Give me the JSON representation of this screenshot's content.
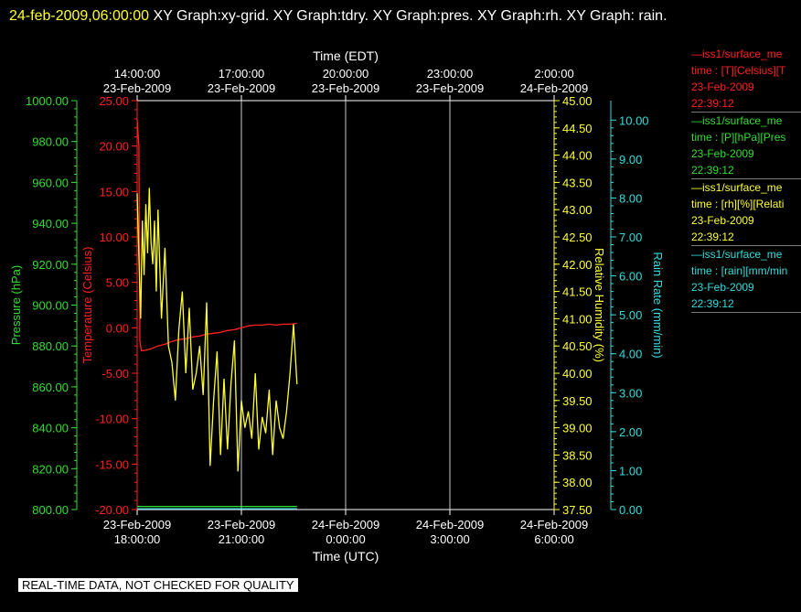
{
  "title": {
    "timestamp": "24-feb-2009,06:00:00",
    "text": "XY Graph:xy-grid.  XY Graph:tdry.  XY Graph:pres.  XY Graph:rh.  XY Graph: rain."
  },
  "quality_note": "REAL-TIME DATA, NOT CHECKED FOR QUALITY",
  "legend": [
    {
      "color": "#ff2020",
      "lines": [
        "—iss1/surface_me",
        "time : [T][Celsius][T",
        "23-Feb-2009",
        "22:39:12"
      ]
    },
    {
      "color": "#33dd33",
      "lines": [
        "—iss1/surface_me",
        "time : [P][hPa][Pres",
        "23-Feb-2009",
        "22:39:12"
      ]
    },
    {
      "color": "#ffff33",
      "lines": [
        "—iss1/surface_me",
        "time : [rh][%][Relati",
        "23-Feb-2009",
        "22:39:12"
      ]
    },
    {
      "color": "#33dddd",
      "lines": [
        "—iss1/surface_me",
        "time : [rain][mm/min",
        "23-Feb-2009",
        "22:39:12"
      ]
    }
  ],
  "chart_data": {
    "type": "line",
    "top_axis": {
      "label": "Time (EDT)",
      "ticks": [
        {
          "hour": 0,
          "line1": "14:00:00",
          "line2": "23-Feb-2009"
        },
        {
          "hour": 3,
          "line1": "17:00:00",
          "line2": "23-Feb-2009"
        },
        {
          "hour": 6,
          "line1": "20:00:00",
          "line2": "23-Feb-2009"
        },
        {
          "hour": 9,
          "line1": "23:00:00",
          "line2": "23-Feb-2009"
        },
        {
          "hour": 12,
          "line1": "2:00:00",
          "line2": "24-Feb-2009"
        }
      ]
    },
    "bottom_axis": {
      "label": "Time (UTC)",
      "ticks": [
        {
          "hour": 0,
          "line1": "23-Feb-2009",
          "line2": "18:00:00"
        },
        {
          "hour": 3,
          "line1": "23-Feb-2009",
          "line2": "21:00:00"
        },
        {
          "hour": 6,
          "line1": "24-Feb-2009",
          "line2": "0:00:00"
        },
        {
          "hour": 9,
          "line1": "24-Feb-2009",
          "line2": "3:00:00"
        },
        {
          "hour": 12,
          "line1": "24-Feb-2009",
          "line2": "6:00:00"
        }
      ]
    },
    "xlim": [
      0,
      12
    ],
    "y_axes": [
      {
        "id": "pres",
        "label": "Pressure (hPa)",
        "color": "#33dd33",
        "ylim": [
          800,
          1000
        ],
        "ticks": [
          "800.00",
          "820.00",
          "840.00",
          "860.00",
          "880.00",
          "900.00",
          "920.00",
          "940.00",
          "960.00",
          "980.00",
          "1000.00"
        ]
      },
      {
        "id": "tdry",
        "label": "Temperature (Celsius)",
        "color": "#ff2020",
        "ylim": [
          -20,
          25
        ],
        "ticks": [
          "-20.00",
          "-15.00",
          "-10.00",
          "-5.00",
          "0.00",
          "5.00",
          "10.00",
          "15.00",
          "20.00",
          "25.00"
        ]
      },
      {
        "id": "rh",
        "label": "Relative Humidity (%)",
        "color": "#ffff33",
        "ylim": [
          37.5,
          45
        ],
        "ticks": [
          "37.50",
          "38.00",
          "38.50",
          "39.00",
          "39.50",
          "40.00",
          "40.50",
          "41.00",
          "41.50",
          "42.00",
          "42.50",
          "43.00",
          "43.50",
          "44.00",
          "44.50",
          "45.00"
        ]
      },
      {
        "id": "rain",
        "label": "Rain Rate (mm/min)",
        "color": "#33dddd",
        "ylim": [
          0,
          10.5
        ],
        "ticks": [
          "0.00",
          "1.00",
          "2.00",
          "3.00",
          "4.00",
          "5.00",
          "6.00",
          "7.00",
          "8.00",
          "9.00",
          "10.00"
        ]
      }
    ],
    "grid": "vertical",
    "series": [
      {
        "name": "iss1/surface_me time : [T][Celsius][T",
        "axis": "tdry",
        "color": "#ff2020",
        "x": [
          0,
          0.05,
          0.08,
          0.12,
          0.2,
          0.4,
          0.6,
          0.8,
          1.0,
          1.2,
          1.4,
          1.6,
          1.8,
          2.0,
          2.2,
          2.4,
          2.6,
          2.8,
          3.0,
          3.2,
          3.4,
          3.6,
          3.8,
          4.0,
          4.2,
          4.4,
          4.6
        ],
        "y": [
          23,
          20,
          -1.5,
          -2.5,
          -2.5,
          -2.3,
          -2.0,
          -1.8,
          -1.5,
          -1.3,
          -1.2,
          -1.0,
          -0.9,
          -0.7,
          -0.6,
          -0.5,
          -0.3,
          -0.2,
          0.0,
          0.2,
          0.3,
          0.3,
          0.4,
          0.3,
          0.4,
          0.4,
          0.5
        ]
      },
      {
        "name": "iss1/surface_me time : [P][hPa][Pres",
        "axis": "pres",
        "color": "#33dd33",
        "x": [
          0,
          4.6
        ],
        "y": [
          801.5,
          801.5
        ]
      },
      {
        "name": "iss1/surface_me time : [rh][%][Relati",
        "axis": "rh",
        "color": "#ffff33",
        "x": [
          0,
          0.1,
          0.15,
          0.2,
          0.25,
          0.3,
          0.35,
          0.4,
          0.45,
          0.5,
          0.55,
          0.6,
          0.7,
          0.8,
          0.9,
          1.0,
          1.1,
          1.2,
          1.3,
          1.4,
          1.5,
          1.6,
          1.7,
          1.8,
          1.9,
          2.0,
          2.1,
          2.2,
          2.3,
          2.4,
          2.5,
          2.6,
          2.7,
          2.8,
          2.9,
          3.0,
          3.1,
          3.2,
          3.3,
          3.4,
          3.5,
          3.6,
          3.7,
          3.8,
          3.9,
          4.0,
          4.1,
          4.2,
          4.3,
          4.4,
          4.5,
          4.6
        ],
        "y": [
          43.3,
          41.0,
          42.8,
          41.8,
          43.1,
          42.2,
          43.4,
          42.4,
          42.0,
          42.8,
          41.5,
          43.0,
          41.0,
          42.3,
          40.5,
          40.2,
          39.5,
          40.8,
          41.5,
          40.0,
          41.2,
          39.7,
          40.0,
          40.5,
          39.6,
          41.3,
          38.3,
          39.5,
          40.4,
          38.5,
          39.9,
          38.6,
          39.8,
          40.6,
          38.2,
          39.5,
          39.0,
          39.3,
          38.8,
          40.0,
          38.6,
          39.2,
          38.9,
          39.7,
          38.5,
          39.5,
          39.0,
          38.8,
          39.3,
          40.0,
          40.9,
          39.8
        ]
      },
      {
        "name": "iss1/surface_me time : [rain][mm/min",
        "axis": "rain",
        "color": "#33dddd",
        "x": [
          0,
          4.6
        ],
        "y": [
          0.02,
          0.02
        ]
      }
    ]
  }
}
